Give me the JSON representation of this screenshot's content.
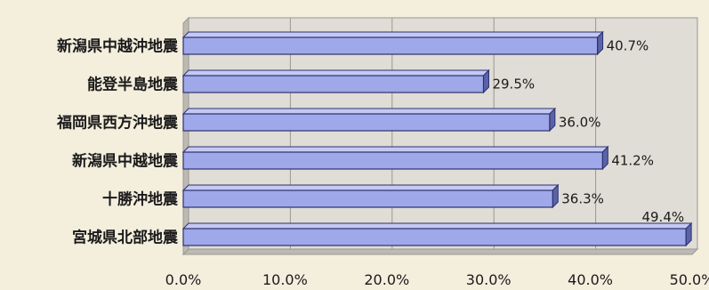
{
  "chart_data": {
    "type": "bar",
    "orientation": "horizontal",
    "categories": [
      "新潟県中越沖地震",
      "能登半島地震",
      "福岡県西方沖地震",
      "新潟県中越地震",
      "十勝沖地震",
      "宮城県北部地震"
    ],
    "values": [
      40.7,
      29.5,
      36.0,
      41.2,
      36.3,
      49.4
    ],
    "value_labels": [
      "40.7%",
      "29.5%",
      "36.0%",
      "41.2%",
      "36.3%",
      "49.4%"
    ],
    "xlim": [
      0,
      50
    ],
    "x_ticks": [
      "0.0%",
      "10.0%",
      "20.0%",
      "30.0%",
      "40.0%",
      "50.0%"
    ],
    "grid": true,
    "colors": {
      "bar_face": "#9fa8e8",
      "bar_top": "#c3c9f2",
      "bar_side": "#5b63a8",
      "bar_outline": "#2c3170",
      "wall": "#e0ddd6",
      "floor": "#bdbab3",
      "grid": "#9a9890",
      "background": "#f4eedd"
    }
  }
}
